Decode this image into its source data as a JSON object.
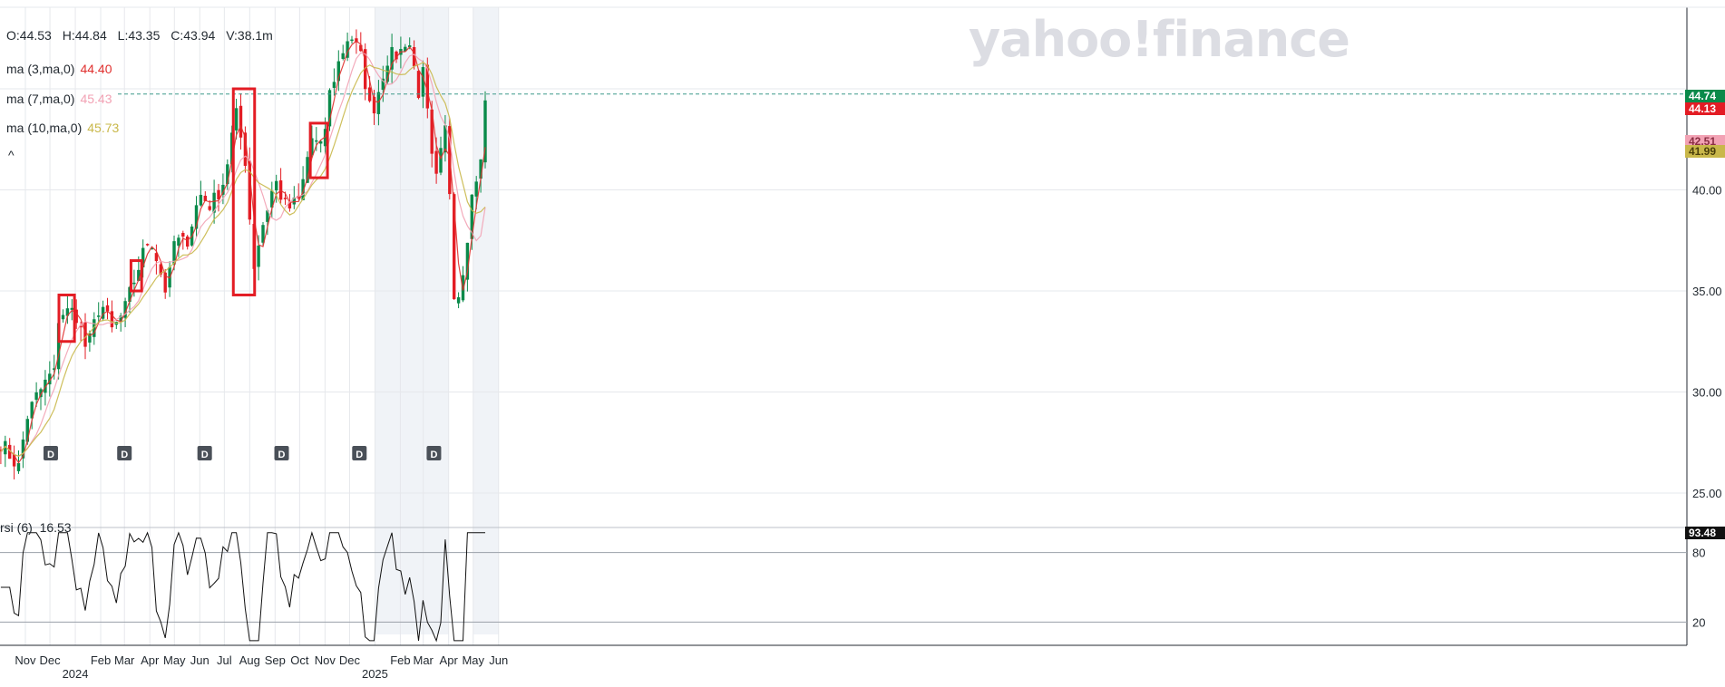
{
  "ohlc": {
    "open": "O:44.53",
    "high": "H:44.84",
    "low": "L:43.35",
    "close": "C:43.94",
    "volume": "V:38.1m"
  },
  "indicators": [
    {
      "label": "ma (3,ma,0)",
      "value": "44.40",
      "color": "#e0302e"
    },
    {
      "label": "ma (7,ma,0)",
      "value": "45.43",
      "color": "#f2a2b4"
    },
    {
      "label": "ma (10,ma,0)",
      "value": "45.73",
      "color": "#c9b84a"
    }
  ],
  "collapse_glyph": "^",
  "watermark": "yahoo!finance",
  "rsi": {
    "label": "rsi (6)",
    "value": "16.53",
    "levels": [
      80,
      20
    ]
  },
  "price_tags": [
    {
      "value": "44.74",
      "color": "#0a8a4a"
    },
    {
      "value": "44.13",
      "color": "#e31c24"
    },
    {
      "value": "42.51",
      "color": "#f2a2b4"
    },
    {
      "value": "41.99",
      "color": "#c9b84a"
    },
    {
      "value": "93.48",
      "color": "#111111"
    }
  ],
  "dividend_marker": "D",
  "colors": {
    "up": "#0a8a4a",
    "down": "#e31c24",
    "grid": "#e6e8ec",
    "shade": "#f0f3f7",
    "box": "#e31c24",
    "rsi_line": "#111111"
  },
  "chart_data": {
    "type": "candlestick",
    "y_ticks": [
      "25.00",
      "30.00",
      "35.00",
      "40.00"
    ],
    "ylim": [
      23.5,
      48.5
    ],
    "rsi_ticks": [
      "80",
      "20"
    ],
    "x_months": [
      "Nov",
      "Dec",
      "Feb",
      "Mar",
      "Apr",
      "May",
      "Jun",
      "Jul",
      "Aug",
      "Sep",
      "Oct",
      "Nov",
      "Dec",
      "Feb",
      "Mar",
      "Apr",
      "May",
      "Jun"
    ],
    "x_years": [
      "2024",
      "2025"
    ],
    "price_path": [
      [
        "2023-10-02",
        27.5
      ],
      [
        "2023-10-25",
        26.2
      ],
      [
        "2023-11-01",
        28.6
      ],
      [
        "2023-11-15",
        29.8
      ],
      [
        "2023-12-01",
        30.8
      ],
      [
        "2023-12-07",
        30.9
      ],
      [
        "2023-12-12",
        33.9
      ],
      [
        "2024-01-01",
        34.0
      ],
      [
        "2024-01-15",
        32.0
      ],
      [
        "2024-02-01",
        34.5
      ],
      [
        "2024-02-15",
        33.0
      ],
      [
        "2024-03-01",
        34.0
      ],
      [
        "2024-03-15",
        35.8
      ],
      [
        "2024-04-01",
        37.8
      ],
      [
        "2024-04-22",
        34.8
      ],
      [
        "2024-05-01",
        37.5
      ],
      [
        "2024-05-15",
        37.3
      ],
      [
        "2024-06-01",
        39.8
      ],
      [
        "2024-06-15",
        39.2
      ],
      [
        "2024-07-01",
        40.5
      ],
      [
        "2024-07-15",
        43.8
      ],
      [
        "2024-07-28",
        41.2
      ],
      [
        "2024-08-05",
        36.0
      ],
      [
        "2024-08-15",
        38.0
      ],
      [
        "2024-09-01",
        40.5
      ],
      [
        "2024-09-15",
        39.0
      ],
      [
        "2024-10-01",
        39.5
      ],
      [
        "2024-10-15",
        42.6
      ],
      [
        "2024-10-29",
        41.9
      ],
      [
        "2024-11-05",
        44.5
      ],
      [
        "2024-11-15",
        46.0
      ],
      [
        "2024-12-01",
        47.8
      ],
      [
        "2024-12-15",
        46.5
      ],
      [
        "2024-12-26",
        44.0
      ],
      [
        "2025-01-01",
        44.2
      ],
      [
        "2025-01-15",
        46.5
      ],
      [
        "2025-02-01",
        46.8
      ],
      [
        "2025-02-10",
        47.7
      ],
      [
        "2025-02-25",
        44.5
      ],
      [
        "2025-03-01",
        45.8
      ],
      [
        "2025-03-15",
        40.0
      ],
      [
        "2025-03-28",
        43.0
      ],
      [
        "2025-04-01",
        41.8
      ],
      [
        "2025-04-05",
        36.0
      ],
      [
        "2025-04-10",
        34.2
      ],
      [
        "2025-04-20",
        36.5
      ],
      [
        "2025-05-01",
        40.2
      ],
      [
        "2025-05-12",
        41.5
      ],
      [
        "2025-05-16",
        44.7
      ]
    ],
    "dividend_dates": [
      "2023-12-02",
      "2024-03-01",
      "2024-06-07",
      "2024-09-09",
      "2024-12-13",
      "2025-03-14"
    ],
    "highlight_boxes": [
      {
        "from": "2023-12-12",
        "to": "2023-12-31",
        "low": 32.5,
        "high": 34.8
      },
      {
        "from": "2024-03-09",
        "to": "2024-03-22",
        "low": 35.0,
        "high": 36.5
      },
      {
        "from": "2024-07-12",
        "to": "2024-08-07",
        "low": 34.8,
        "high": 45.0
      },
      {
        "from": "2024-10-14",
        "to": "2024-11-04",
        "low": 40.6,
        "high": 43.3
      }
    ],
    "shaded_ranges": [
      [
        "2025-01-01",
        "2025-04-01"
      ],
      [
        "2025-05-01",
        "2025-06-01"
      ]
    ],
    "last_price": 44.13,
    "legend": "top-left",
    "grid": true
  }
}
